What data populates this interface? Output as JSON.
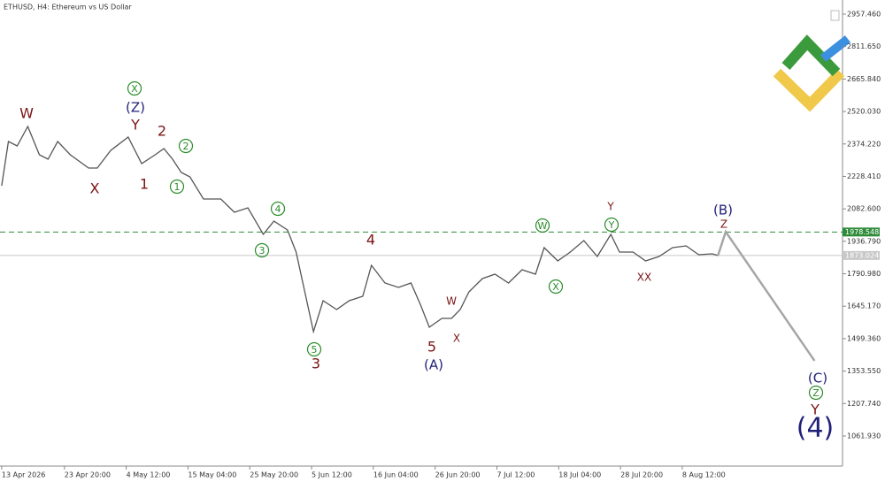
{
  "chart_data": {
    "type": "line",
    "title": "ETHUSD, H4:  Ethereum vs US Dollar",
    "xlim": [
      "2026-04-12 17:00",
      "2026-09-05 04:00"
    ],
    "xticks": [
      {
        "value": "2026-04-13 00:00",
        "label": "13 Apr 2026"
      },
      {
        "value": "2026-04-23 20:00",
        "label": "23 Apr 20:00"
      },
      {
        "value": "2026-05-04 12:00",
        "label": "4 May 12:00"
      },
      {
        "value": "2026-05-15 04:00",
        "label": "15 May 04:00"
      },
      {
        "value": "2026-05-25 20:00",
        "label": "25 May 20:00"
      },
      {
        "value": "2026-06-05 12:00",
        "label": "5 Jun 12:00"
      },
      {
        "value": "2026-06-16 04:00",
        "label": "16 Jun 04:00"
      },
      {
        "value": "2026-06-26 20:00",
        "label": "26 Jun 20:00"
      },
      {
        "value": "2026-07-07 12:00",
        "label": "7 Jul 12:00"
      },
      {
        "value": "2026-07-18 04:00",
        "label": "18 Jul 04:00"
      },
      {
        "value": "2026-07-28 20:00",
        "label": "28 Jul 20:00"
      },
      {
        "value": "2026-08-08 12:00",
        "label": "8 Aug 12:00"
      }
    ],
    "ylim": [
      926.8,
      3021.0
    ],
    "yticks": [
      {
        "value": 2957.46,
        "label": "2957.460"
      },
      {
        "value": 2811.65,
        "label": "2811.650"
      },
      {
        "value": 2665.84,
        "label": "2665.840"
      },
      {
        "value": 2520.03,
        "label": "2520.030"
      },
      {
        "value": 2374.22,
        "label": "2374.220"
      },
      {
        "value": 2228.41,
        "label": "2228.410"
      },
      {
        "value": 2082.6,
        "label": "2082.600"
      },
      {
        "value": 1936.79,
        "label": "1936.790"
      },
      {
        "value": 1790.98,
        "label": "1790.980"
      },
      {
        "value": 1645.17,
        "label": "1645.170"
      },
      {
        "value": 1499.36,
        "label": "1499.360"
      },
      {
        "value": 1353.55,
        "label": "1353.550"
      },
      {
        "value": 1207.74,
        "label": "1207.740"
      },
      {
        "value": 1061.93,
        "label": "1061.930"
      }
    ],
    "series": [
      {
        "name": "ETHUSD",
        "color": "#555555",
        "x": [
          "2026-04-13 00:00",
          "2026-04-14 04:00",
          "2026-04-15 16:00",
          "2026-04-17 12:00",
          "2026-04-19 12:00",
          "2026-04-21 00:00",
          "2026-04-22 16:00",
          "2026-04-24 20:00",
          "2026-04-28 00:00",
          "2026-04-29 12:00",
          "2026-05-01 20:00",
          "2026-05-04 20:00",
          "2026-05-07 04:00",
          "2026-05-09 12:00",
          "2026-05-11 00:00",
          "2026-05-12 12:00",
          "2026-05-14 00:00",
          "2026-05-15 12:00",
          "2026-05-17 20:00",
          "2026-05-20 20:00",
          "2026-05-23 04:00",
          "2026-05-25 12:00",
          "2026-05-28 04:00",
          "2026-05-30 00:00",
          "2026-06-01 08:00",
          "2026-06-02 20:00",
          "2026-06-04 08:00",
          "2026-06-05 20:00",
          "2026-06-07 12:00",
          "2026-06-09 20:00",
          "2026-06-12 00:00",
          "2026-06-14 08:00",
          "2026-06-15 20:00",
          "2026-06-18 04:00",
          "2026-06-20 12:00",
          "2026-06-22 16:00",
          "2026-06-24 08:00",
          "2026-06-25 20:00",
          "2026-06-28 00:00",
          "2026-06-29 16:00",
          "2026-07-01 04:00",
          "2026-07-02 16:00",
          "2026-07-05 00:00",
          "2026-07-07 04:00",
          "2026-07-09 12:00",
          "2026-07-11 20:00",
          "2026-07-14 04:00",
          "2026-07-15 16:00",
          "2026-07-18 00:00",
          "2026-07-20 04:00",
          "2026-07-22 12:00",
          "2026-07-24 20:00",
          "2026-07-27 04:00",
          "2026-07-28 16:00",
          "2026-07-31 00:00",
          "2026-08-02 04:00",
          "2026-08-04 12:00",
          "2026-08-06 20:00",
          "2026-08-09 04:00",
          "2026-08-11 08:00",
          "2026-08-13 16:00",
          "2026-08-14 16:00"
        ],
        "values": [
          2186.5,
          2385.2,
          2365.4,
          2452.8,
          2325.6,
          2305.8,
          2385.2,
          2325.6,
          2266.0,
          2266.0,
          2345.5,
          2405.1,
          2285.9,
          2325.6,
          2353.5,
          2305.8,
          2246.2,
          2226.3,
          2126.9,
          2126.9,
          2067.3,
          2087.2,
          1968.0,
          2027.6,
          1987.8,
          1888.5,
          1709.7,
          1530.8,
          1669.9,
          1630.2,
          1669.9,
          1689.8,
          1828.9,
          1749.4,
          1729.5,
          1749.4,
          1650.1,
          1550.7,
          1590.4,
          1590.4,
          1630.2,
          1709.7,
          1769.3,
          1789.1,
          1749.4,
          1809.0,
          1789.1,
          1908.4,
          1848.8,
          1888.5,
          1940.2,
          1868.6,
          1968.0,
          1888.5,
          1888.5,
          1848.8,
          1868.6,
          1908.4,
          1916.3,
          1876.6,
          1880.5,
          1873.0
        ]
      },
      {
        "name": "Forecast",
        "color": "#a6a6a6",
        "x": [
          "2026-08-14 16:00",
          "2026-08-16 00:00",
          "2026-08-31 08:00"
        ],
        "values": [
          1873.0,
          1980.0,
          1400.0
        ]
      }
    ],
    "hlines": [
      {
        "value": 1978.548,
        "label": "1978.548",
        "color": "#2e8b3a",
        "style": "dashed"
      },
      {
        "value": 1873.024,
        "label": "1873.024",
        "color": "#c8c8c8",
        "style": "solid"
      }
    ],
    "annotations": [
      "W",
      "X",
      "Y",
      "(Z)",
      "X",
      "2",
      "1",
      "2",
      "1",
      "4",
      "3",
      "5",
      "3",
      "4",
      "W",
      "X",
      "5",
      "(A)",
      "W",
      "X",
      "Y",
      "Y",
      "XX",
      "(B)",
      "Z",
      "(C)",
      "Z",
      "Y",
      "(4)"
    ]
  }
}
